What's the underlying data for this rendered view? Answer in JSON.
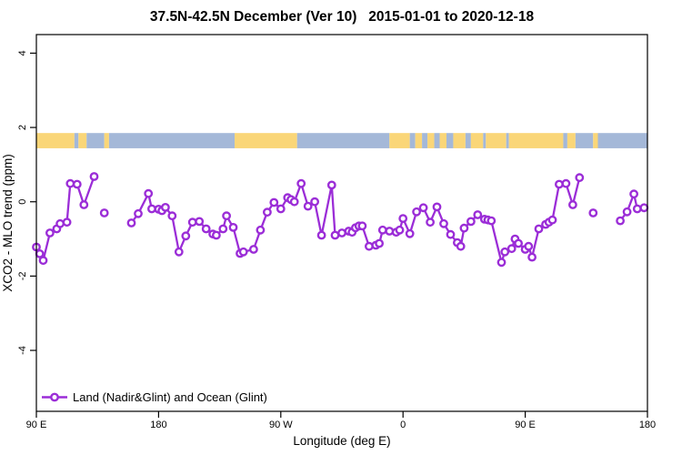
{
  "chart_data": {
    "type": "line",
    "title": "37.5N-42.5N December (Ver 10)   2015-01-01 to 2020-12-18",
    "xlabel": "Longitude (deg E)",
    "ylabel": "XCO2 - MLO trend (ppm)",
    "xlim": [
      90,
      540
    ],
    "ylim": [
      -5.64,
      4.5
    ],
    "grid": false,
    "x_ticks": [
      {
        "v": 90,
        "label": "90 E"
      },
      {
        "v": 180,
        "label": "180"
      },
      {
        "v": 270,
        "label": "90 W"
      },
      {
        "v": 360,
        "label": "0"
      },
      {
        "v": 450,
        "label": "90 E"
      },
      {
        "v": 540,
        "label": "180"
      }
    ],
    "y_ticks": [
      {
        "v": 4,
        "label": "4"
      },
      {
        "v": 2,
        "label": "2"
      },
      {
        "v": 0,
        "label": "0"
      },
      {
        "v": -2,
        "label": "-2"
      },
      {
        "v": -4,
        "label": "-4"
      }
    ],
    "legend": {
      "label": "Land (Nadir&Glint) and Ocean (Glint)",
      "position": "bottom-left"
    },
    "series": [
      {
        "name": "Land (Nadir&Glint) and Ocean (Glint)",
        "color": "#9B2DD7",
        "marker": "open-circle",
        "segments": [
          [
            [
              90,
              -1.22
            ],
            [
              92.5,
              -1.4
            ],
            [
              95,
              -1.58
            ],
            [
              100,
              -0.84
            ],
            [
              105,
              -0.73
            ],
            [
              107.5,
              -0.59
            ],
            [
              112.5,
              -0.55
            ],
            [
              115,
              0.49
            ],
            [
              120,
              0.47
            ],
            [
              125,
              -0.08
            ],
            [
              132.5,
              0.68
            ]
          ],
          [
            [
              140,
              -0.3
            ]
          ],
          [
            [
              160,
              -0.57
            ],
            [
              165,
              -0.32
            ],
            [
              172.5,
              0.22
            ],
            [
              175,
              -0.19
            ],
            [
              180,
              -0.2
            ],
            [
              182.5,
              -0.24
            ],
            [
              185,
              -0.15
            ],
            [
              190,
              -0.38
            ],
            [
              195,
              -1.35
            ],
            [
              200,
              -0.92
            ],
            [
              205,
              -0.55
            ],
            [
              210,
              -0.53
            ],
            [
              215,
              -0.73
            ],
            [
              220,
              -0.87
            ],
            [
              222.5,
              -0.9
            ],
            [
              227.5,
              -0.73
            ],
            [
              230,
              -0.38
            ],
            [
              235,
              -0.69
            ],
            [
              240,
              -1.39
            ],
            [
              242.5,
              -1.35
            ],
            [
              250,
              -1.28
            ],
            [
              255,
              -0.76
            ],
            [
              260,
              -0.28
            ],
            [
              265,
              -0.02
            ],
            [
              270,
              -0.19
            ],
            [
              275,
              0.11
            ],
            [
              277.5,
              0.06
            ],
            [
              280,
              0.0
            ],
            [
              285,
              0.49
            ],
            [
              290,
              -0.12
            ],
            [
              295,
              0.0
            ],
            [
              300,
              -0.9
            ],
            [
              307.5,
              0.45
            ],
            [
              310,
              -0.9
            ],
            [
              315,
              -0.84
            ],
            [
              320,
              -0.79
            ],
            [
              322.5,
              -0.82
            ],
            [
              325,
              -0.7
            ],
            [
              327.5,
              -0.65
            ],
            [
              330,
              -0.65
            ],
            [
              335,
              -1.2
            ],
            [
              340,
              -1.17
            ],
            [
              342.5,
              -1.12
            ],
            [
              345,
              -0.76
            ],
            [
              350,
              -0.79
            ],
            [
              355,
              -0.82
            ],
            [
              357.5,
              -0.76
            ],
            [
              360,
              -0.45
            ],
            [
              365,
              -0.86
            ],
            [
              370,
              -0.27
            ],
            [
              375,
              -0.16
            ],
            [
              380,
              -0.55
            ],
            [
              385,
              -0.14
            ],
            [
              390,
              -0.59
            ],
            [
              395,
              -0.88
            ],
            [
              400,
              -1.1
            ],
            [
              402.5,
              -1.2
            ],
            [
              405,
              -0.71
            ],
            [
              410,
              -0.53
            ],
            [
              415,
              -0.35
            ],
            [
              420,
              -0.47
            ],
            [
              422.5,
              -0.49
            ],
            [
              425,
              -0.51
            ],
            [
              432.5,
              -1.63
            ],
            [
              435,
              -1.35
            ],
            [
              440,
              -1.26
            ],
            [
              442.5,
              -1.0
            ],
            [
              445,
              -1.12
            ],
            [
              450,
              -1.28
            ],
            [
              452.5,
              -1.2
            ],
            [
              455,
              -1.49
            ],
            [
              460,
              -0.73
            ],
            [
              465,
              -0.61
            ],
            [
              467.5,
              -0.55
            ],
            [
              470,
              -0.49
            ],
            [
              475,
              0.47
            ],
            [
              480,
              0.49
            ],
            [
              485,
              -0.08
            ],
            [
              490,
              0.65
            ]
          ],
          [
            [
              500,
              -0.3
            ]
          ],
          [
            [
              520,
              -0.51
            ],
            [
              525,
              -0.27
            ],
            [
              530,
              0.21
            ],
            [
              532.5,
              -0.19
            ],
            [
              537.5,
              -0.16
            ]
          ]
        ]
      }
    ],
    "map_band": {
      "v_top": 1.85,
      "v_bottom": 1.44,
      "land_color": "#FAD678",
      "ocean_color": "#A4B8D8",
      "segments": [
        {
          "from": 90,
          "to": 118,
          "type": "land"
        },
        {
          "from": 118,
          "to": 121,
          "type": "ocean"
        },
        {
          "from": 121,
          "to": 127,
          "type": "land"
        },
        {
          "from": 127,
          "to": 140,
          "type": "ocean"
        },
        {
          "from": 140,
          "to": 143.5,
          "type": "land"
        },
        {
          "from": 143.5,
          "to": 236,
          "type": "ocean"
        },
        {
          "from": 236,
          "to": 282,
          "type": "land"
        },
        {
          "from": 282,
          "to": 350,
          "type": "ocean"
        },
        {
          "from": 350,
          "to": 365,
          "type": "land"
        },
        {
          "from": 365,
          "to": 369,
          "type": "ocean"
        },
        {
          "from": 369,
          "to": 374,
          "type": "land"
        },
        {
          "from": 374,
          "to": 378,
          "type": "ocean"
        },
        {
          "from": 378,
          "to": 383,
          "type": "land"
        },
        {
          "from": 383,
          "to": 387,
          "type": "ocean"
        },
        {
          "from": 387,
          "to": 392,
          "type": "land"
        },
        {
          "from": 392,
          "to": 397,
          "type": "ocean"
        },
        {
          "from": 397,
          "to": 406,
          "type": "land"
        },
        {
          "from": 406,
          "to": 410,
          "type": "ocean"
        },
        {
          "from": 410,
          "to": 419,
          "type": "land"
        },
        {
          "from": 419,
          "to": 421,
          "type": "ocean"
        },
        {
          "from": 421,
          "to": 436,
          "type": "land"
        },
        {
          "from": 436,
          "to": 438,
          "type": "ocean"
        },
        {
          "from": 438,
          "to": 478,
          "type": "land"
        },
        {
          "from": 478,
          "to": 481,
          "type": "ocean"
        },
        {
          "from": 481,
          "to": 487,
          "type": "land"
        },
        {
          "from": 487,
          "to": 500,
          "type": "ocean"
        },
        {
          "from": 500,
          "to": 503.5,
          "type": "land"
        },
        {
          "from": 503.5,
          "to": 540,
          "type": "ocean"
        }
      ]
    }
  }
}
